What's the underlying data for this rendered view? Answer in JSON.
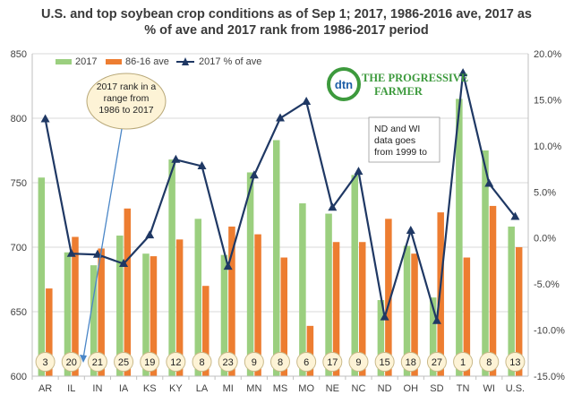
{
  "chart_data": {
    "type": "bar",
    "title_lines": [
      "U.S. and top soybean crop conditions as of Sep 1; 2017, 1986-2016 ave, 2017 as",
      "% of ave and 2017 rank from 1986-2017 period"
    ],
    "categories": [
      "AR",
      "IL",
      "IN",
      "IA",
      "KS",
      "KY",
      "LA",
      "MI",
      "MN",
      "MS",
      "MO",
      "NE",
      "NC",
      "ND",
      "OH",
      "SD",
      "TN",
      "WI",
      "U.S."
    ],
    "series": [
      {
        "name": "2017",
        "type": "bar",
        "axis": "left",
        "color": "#9bcf7f",
        "values": [
          754,
          696,
          686,
          709,
          695,
          768,
          722,
          694,
          758,
          783,
          734,
          726,
          756,
          659,
          701,
          661,
          815,
          775,
          716
        ]
      },
      {
        "name": "86-16 ave",
        "type": "bar",
        "axis": "left",
        "color": "#ed7d31",
        "values": [
          668,
          708,
          699,
          730,
          693,
          706,
          670,
          716,
          710,
          692,
          639,
          704,
          704,
          722,
          695,
          727,
          692,
          732,
          700
        ]
      },
      {
        "name": "2017 % of ave",
        "type": "line",
        "axis": "right",
        "color": "#1f3864",
        "values": [
          12.9,
          -1.7,
          -1.8,
          -2.8,
          0.3,
          8.5,
          7.8,
          -3.1,
          6.8,
          13.0,
          14.8,
          3.3,
          7.2,
          -8.6,
          0.8,
          -9.0,
          17.9,
          5.9,
          2.3
        ]
      }
    ],
    "ranks": [
      "3",
      "20",
      "21",
      "25",
      "19",
      "12",
      "8",
      "23",
      "9",
      "8",
      "6",
      "17",
      "9",
      "15",
      "18",
      "27",
      "1",
      "8",
      "13"
    ],
    "y_left": {
      "min": 600,
      "max": 850,
      "ticks": [
        "600",
        "650",
        "700",
        "750",
        "800",
        "850"
      ]
    },
    "y_right": {
      "min": -15,
      "max": 20,
      "ticks": [
        "-15.0%",
        "-10.0%",
        "-5.0%",
        "0.0%",
        "5.0%",
        "10.0%",
        "15.0%",
        "20.0%"
      ]
    },
    "grid": true,
    "legend": "top-left",
    "annotations": {
      "rank_note": [
        "2017 rank in a",
        "range from",
        "1986 to 2017"
      ],
      "nd_wi_note": [
        "ND  and WI",
        "data goes",
        "from 1999 to"
      ]
    }
  },
  "logo": {
    "brand": "dtn",
    "name_line1": "THE PROGRESSIVE",
    "name_line2": "FARMER"
  }
}
